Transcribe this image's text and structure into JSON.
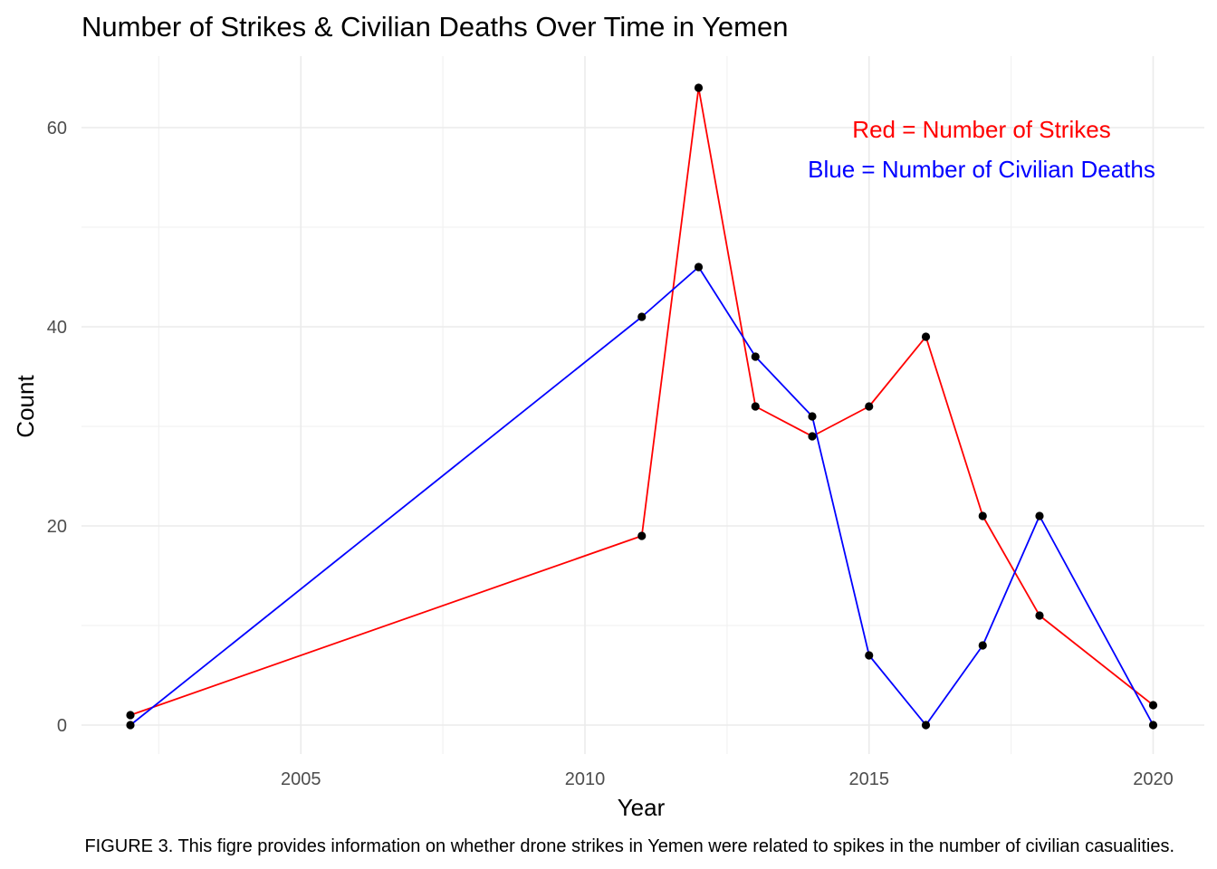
{
  "chart_data": {
    "type": "line",
    "title": "Number of Strikes & Civilian Deaths Over Time in Yemen",
    "xlabel": "Year",
    "ylabel": "Count",
    "caption": "FIGURE 3. This figre provides information on whether drone strikes in Yemen were related to spikes in the number of civilian casualities.",
    "xlim": [
      2001.5,
      2020.6
    ],
    "ylim": [
      -5,
      67
    ],
    "x_ticks": [
      2005,
      2010,
      2015,
      2020
    ],
    "y_ticks": [
      0,
      20,
      40,
      60
    ],
    "grid": true,
    "legend": "none",
    "annotations": [
      {
        "text": "Red = Number of Strikes",
        "color": "#ff0000"
      },
      {
        "text": "Blue = Number of Civilian Deaths",
        "color": "#0000ff"
      }
    ],
    "point_color": "#000000",
    "series": [
      {
        "color": "#ff0000",
        "x": [
          2002,
          2011,
          2012,
          2013,
          2014,
          2015,
          2016,
          2017,
          2018,
          2020
        ],
        "values": [
          1,
          19,
          64,
          32,
          29,
          32,
          39,
          21,
          11,
          2
        ]
      },
      {
        "color": "#0000ff",
        "x": [
          2002,
          2011,
          2012,
          2013,
          2014,
          2015,
          2016,
          2017,
          2018,
          2020
        ],
        "values": [
          0,
          41,
          46,
          37,
          31,
          7,
          0,
          8,
          21,
          0
        ]
      }
    ]
  }
}
